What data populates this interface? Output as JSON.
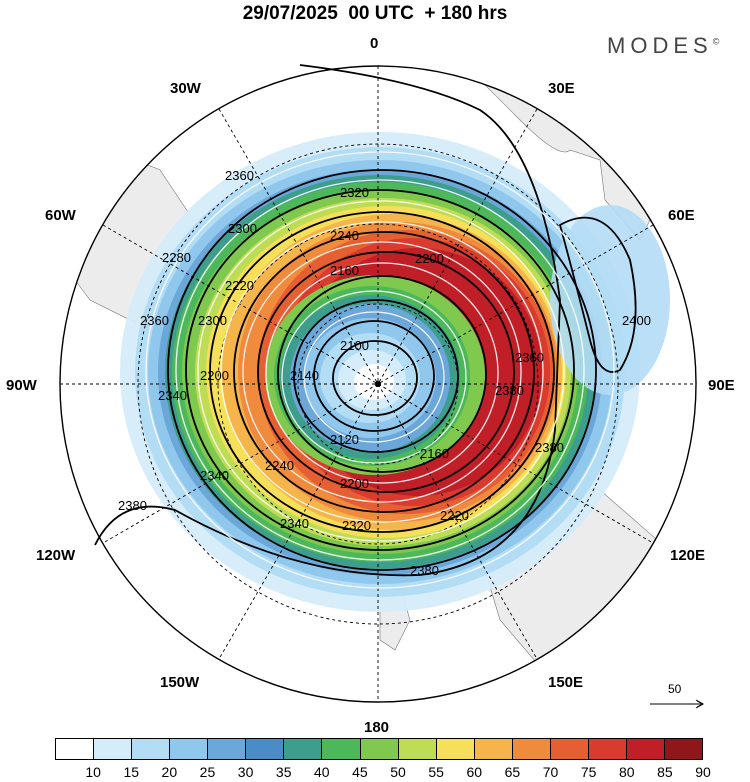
{
  "title": "29/07/2025  00 UTC  + 180 hrs",
  "brand": "MODES",
  "brand_mark": "©",
  "longitude_labels": {
    "lon_0": "0",
    "lon_30e": "30E",
    "lon_60e": "60E",
    "lon_90e": "90E",
    "lon_120e": "120E",
    "lon_150e": "150E",
    "lon_180": "180",
    "lon_150w": "150W",
    "lon_120w": "120W",
    "lon_90w": "90W",
    "lon_60w": "60W",
    "lon_30w": "30W"
  },
  "contour_labels": [
    "2360",
    "2320",
    "2240",
    "2300",
    "2280",
    "2220",
    "2160",
    "2100",
    "2200",
    "2360",
    "2340",
    "2300",
    "2140",
    "2120",
    "2160",
    "2200",
    "2240",
    "2320",
    "2340",
    "2360",
    "2380",
    "2380",
    "2380",
    "2400",
    "2380",
    "2340",
    "2220",
    "2200"
  ],
  "colorbar": {
    "labels": [
      "10",
      "15",
      "20",
      "25",
      "30",
      "35",
      "40",
      "45",
      "50",
      "55",
      "60",
      "65",
      "70",
      "75",
      "80",
      "85",
      "90"
    ],
    "colors": [
      "#ffffff",
      "#d5ecfa",
      "#b3dcf5",
      "#90c7ec",
      "#6ba7d9",
      "#4a8cc6",
      "#3e9e8e",
      "#4db85a",
      "#7fc94f",
      "#bfdc55",
      "#f6e05a",
      "#f5b54a",
      "#f08a3c",
      "#e65f33",
      "#d93b2e",
      "#c01f27",
      "#8f1619"
    ]
  },
  "vector_reference": "50"
}
